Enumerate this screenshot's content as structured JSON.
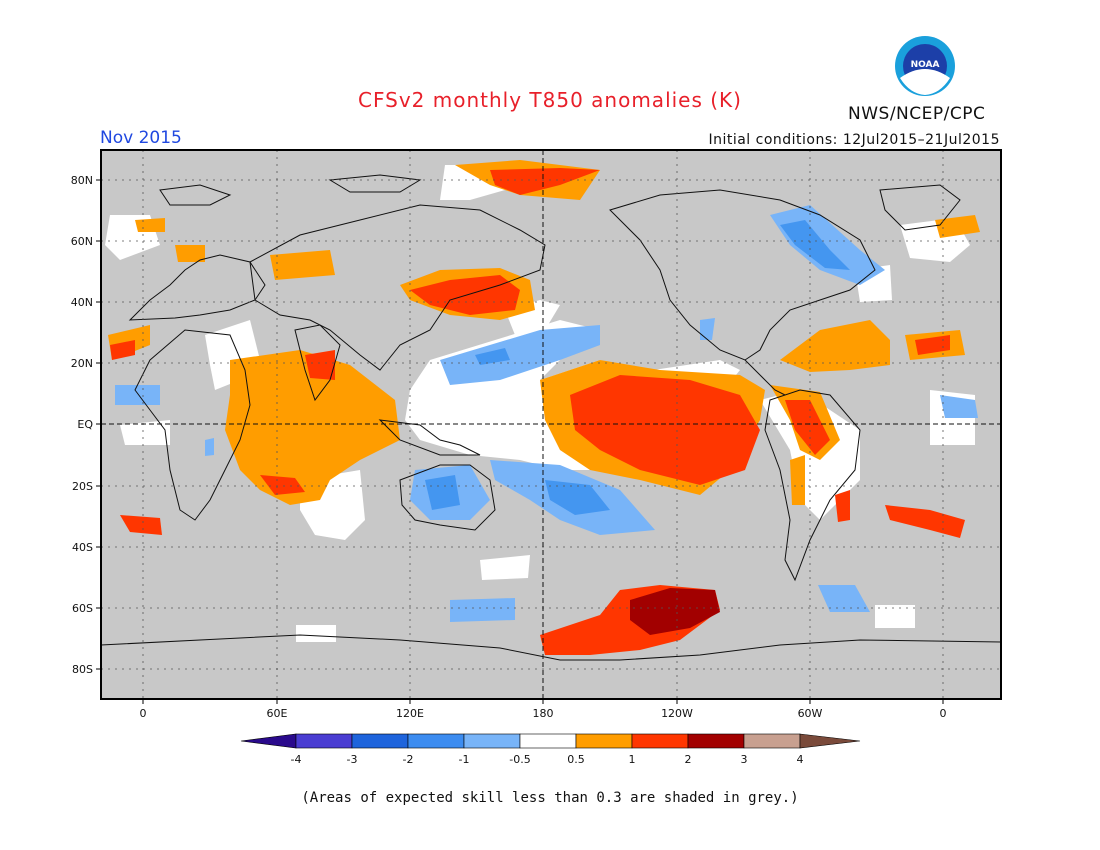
{
  "header": {
    "title": "CFSv2 monthly T850 anomalies (K)",
    "month": "Nov 2015",
    "initial_conditions": "Initial conditions: 12Jul2015–21Jul2015",
    "agency": "NWS/NCEP/CPC",
    "logo_text": "NOAA"
  },
  "footer": {
    "note": "(Areas of expected skill less than 0.3 are shaded in grey.)"
  },
  "map": {
    "lon_labels": [
      "0",
      "60E",
      "120E",
      "180",
      "120W",
      "60W",
      "0"
    ],
    "lat_labels": [
      "80N",
      "60N",
      "40N",
      "20N",
      "EQ",
      "20S",
      "40S",
      "60S",
      "80S"
    ],
    "colors": {
      "grey_low_skill": "#c8c8c8",
      "neutral": "#ffffff",
      "orange": "#ff9d00",
      "red": "#ff3600",
      "dark_red": "#a20000",
      "light_blue": "#78b4f8",
      "blue": "#4496f0"
    }
  },
  "colorbar": {
    "labels": [
      "-4",
      "-3",
      "-2",
      "-1",
      "-0.5",
      "0.5",
      "1",
      "2",
      "3",
      "4"
    ],
    "colors": [
      "#2a0a8c",
      "#4a3dd2",
      "#1e64dc",
      "#3c8cf0",
      "#78b4f8",
      "#ffffff",
      "#ff9d00",
      "#ff3600",
      "#a20000",
      "#c8a090",
      "#7a4a3a"
    ]
  }
}
